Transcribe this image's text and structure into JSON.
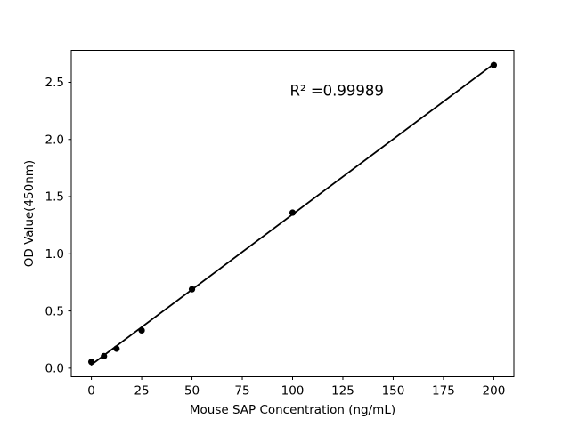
{
  "figure": {
    "background": "#ffffff",
    "title": ""
  },
  "chart_data": {
    "type": "scatter",
    "title": "",
    "xlabel": "Mouse SAP Concentration (ng/mL)",
    "ylabel": "OD Value(450nm)",
    "x": [
      0,
      6.25,
      12.5,
      25,
      50,
      100,
      200
    ],
    "y": [
      0.055,
      0.105,
      0.17,
      0.33,
      0.69,
      1.36,
      2.65
    ],
    "fit_line": {
      "x": [
        0,
        200
      ],
      "y": [
        0.03,
        2.66
      ]
    },
    "annotation": {
      "text": "R² =0.99989",
      "x": 122,
      "y": 2.43
    },
    "xticks": {
      "values": [
        0,
        25,
        50,
        75,
        100,
        125,
        150,
        175,
        200
      ],
      "labels": [
        "0",
        "25",
        "50",
        "75",
        "100",
        "125",
        "150",
        "175",
        "200"
      ]
    },
    "yticks": {
      "values": [
        0,
        0.5,
        1.0,
        1.5,
        2.0,
        2.5
      ],
      "labels": [
        "0.0",
        "0.5",
        "1.0",
        "1.5",
        "2.0",
        "2.5"
      ]
    },
    "xlim": [
      -10,
      210
    ],
    "ylim": [
      -0.075,
      2.78
    ],
    "grid": false,
    "legend": false,
    "marker_color": "#000000",
    "line_color": "#000000",
    "axis_color": "#000000",
    "text_color": "#000000"
  }
}
